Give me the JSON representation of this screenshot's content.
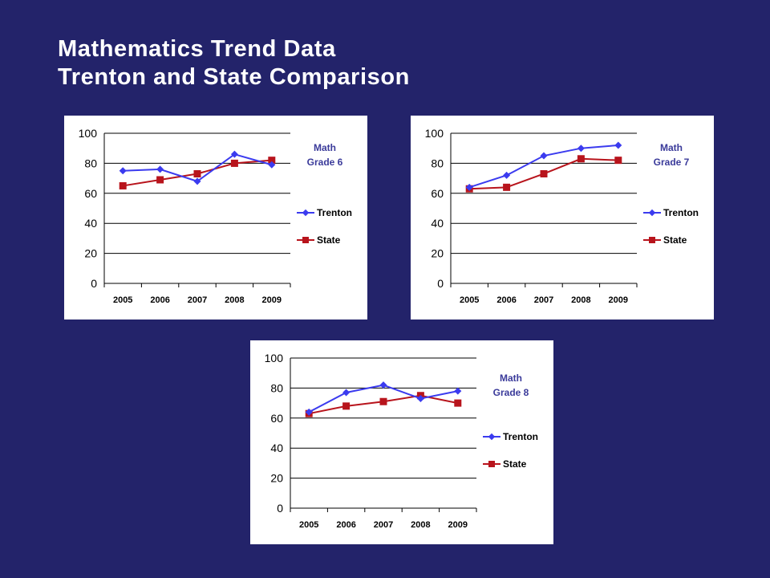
{
  "title": {
    "line1": "Mathematics Trend Data",
    "line2": "Trenton and State Comparison"
  },
  "colors": {
    "background": "#23236a",
    "trenton": "#3b3bef",
    "state": "#b8141c",
    "chart_title": "#3a3a9a"
  },
  "chart_data": [
    {
      "type": "line",
      "title_lines": [
        "Math",
        "Grade 6"
      ],
      "categories": [
        "2005",
        "2006",
        "2007",
        "2008",
        "2009"
      ],
      "series": [
        {
          "name": "Trenton",
          "values": [
            75,
            76,
            68,
            86,
            79
          ],
          "marker": "diamond"
        },
        {
          "name": "State",
          "values": [
            65,
            69,
            73,
            80,
            82
          ],
          "marker": "square"
        }
      ],
      "ylim": [
        0,
        100
      ],
      "yticks": [
        "0",
        "20",
        "40",
        "60",
        "80",
        "100"
      ],
      "grid": true,
      "legend": "right"
    },
    {
      "type": "line",
      "title_lines": [
        "Math",
        "Grade 7"
      ],
      "categories": [
        "2005",
        "2006",
        "2007",
        "2008",
        "2009"
      ],
      "series": [
        {
          "name": "Trenton",
          "values": [
            64,
            72,
            85,
            90,
            92
          ],
          "marker": "diamond"
        },
        {
          "name": "State",
          "values": [
            63,
            64,
            73,
            83,
            82
          ],
          "marker": "square"
        }
      ],
      "ylim": [
        0,
        100
      ],
      "yticks": [
        "0",
        "20",
        "40",
        "60",
        "80",
        "100"
      ],
      "grid": true,
      "legend": "right"
    },
    {
      "type": "line",
      "title_lines": [
        "Math",
        "Grade 8"
      ],
      "categories": [
        "2005",
        "2006",
        "2007",
        "2008",
        "2009"
      ],
      "series": [
        {
          "name": "Trenton",
          "values": [
            64,
            77,
            82,
            73,
            78
          ],
          "marker": "diamond"
        },
        {
          "name": "State",
          "values": [
            63,
            68,
            71,
            75,
            70
          ],
          "marker": "square"
        }
      ],
      "ylim": [
        0,
        100
      ],
      "yticks": [
        "0",
        "20",
        "40",
        "60",
        "80",
        "100"
      ],
      "grid": true,
      "legend": "right"
    }
  ]
}
